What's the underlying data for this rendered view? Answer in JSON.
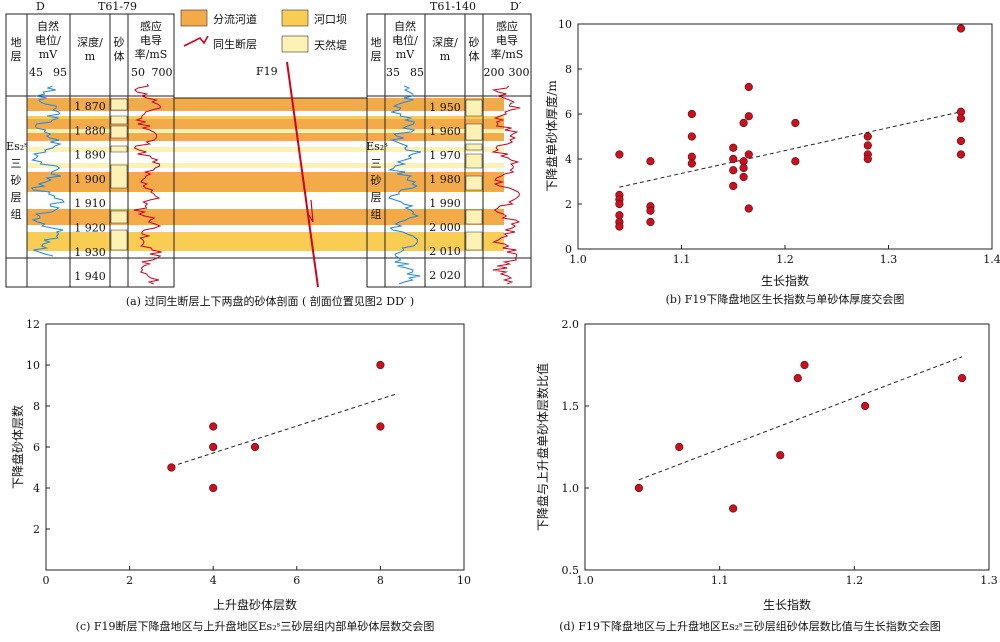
{
  "panel_a": {
    "left_well": {
      "label": "T61-79",
      "point": "D"
    },
    "right_well": {
      "label": "T61-140",
      "point": "D′"
    },
    "columns": {
      "strata": "地层",
      "sp": "自然电位/mV",
      "depth": "深度/m",
      "sand": "砂体",
      "cond": "感应电导率/mS"
    },
    "left_sp_scale": [
      "45",
      "95"
    ],
    "left_cond_scale": [
      "50",
      "700"
    ],
    "right_sp_scale": [
      "35",
      "85"
    ],
    "right_cond_scale": [
      "200",
      "300"
    ],
    "left_depths": [
      "1 870",
      "1 880",
      "1 890",
      "1 900",
      "1 910",
      "1 920",
      "1 930",
      "1 940"
    ],
    "right_depths": [
      "1 950",
      "1 960",
      "1 970",
      "1 980",
      "1 990",
      "2 000",
      "2 010",
      "2 020"
    ],
    "formation": "Es₂ˢ三砂层组",
    "fault_label": "F19",
    "legend": [
      {
        "label": "分流河道",
        "color": "#f3ab4a"
      },
      {
        "label": "同生断层",
        "color": "#d0021b"
      },
      {
        "label": "河口坝",
        "color": "#f9cc54"
      },
      {
        "label": "天然堤",
        "color": "#fdf1b3"
      }
    ],
    "caption": "(a) 过同生断层上下两盘的砂体剖面 ( 剖面位置见图2 DD′ )"
  },
  "chart_data": [
    {
      "type": "scatter",
      "panel": "b",
      "xlabel": "生长指数",
      "ylabel": "下降盘单砂体厚度/m",
      "xlim": [
        1.0,
        1.4
      ],
      "ylim": [
        0,
        10
      ],
      "xticks": [
        "1.0",
        "1.1",
        "1.2",
        "1.3",
        "1.4"
      ],
      "yticks": [
        "0",
        "2",
        "4",
        "6",
        "8",
        "10"
      ],
      "trendline": [
        [
          1.04,
          2.75
        ],
        [
          1.37,
          6.1
        ]
      ],
      "points": [
        [
          1.04,
          4.2
        ],
        [
          1.04,
          2.4
        ],
        [
          1.04,
          2.2
        ],
        [
          1.04,
          2.0
        ],
        [
          1.04,
          1.5
        ],
        [
          1.04,
          1.2
        ],
        [
          1.04,
          1.0
        ],
        [
          1.07,
          3.9
        ],
        [
          1.07,
          1.9
        ],
        [
          1.07,
          1.7
        ],
        [
          1.07,
          1.2
        ],
        [
          1.11,
          6.0
        ],
        [
          1.11,
          5.0
        ],
        [
          1.11,
          4.1
        ],
        [
          1.11,
          3.8
        ],
        [
          1.15,
          4.5
        ],
        [
          1.15,
          4.0
        ],
        [
          1.15,
          3.5
        ],
        [
          1.15,
          2.8
        ],
        [
          1.16,
          5.6
        ],
        [
          1.16,
          3.9
        ],
        [
          1.16,
          3.6
        ],
        [
          1.16,
          3.2
        ],
        [
          1.165,
          7.2
        ],
        [
          1.165,
          5.9
        ],
        [
          1.165,
          4.2
        ],
        [
          1.165,
          1.8
        ],
        [
          1.21,
          5.6
        ],
        [
          1.21,
          3.9
        ],
        [
          1.28,
          5.0
        ],
        [
          1.28,
          4.6
        ],
        [
          1.28,
          4.2
        ],
        [
          1.28,
          4.0
        ],
        [
          1.37,
          9.8
        ],
        [
          1.37,
          6.1
        ],
        [
          1.37,
          5.8
        ],
        [
          1.37,
          4.8
        ],
        [
          1.37,
          4.2
        ]
      ],
      "caption": "(b) F19下降盘地区生长指数与单砂体厚度交会图"
    },
    {
      "type": "scatter",
      "panel": "c",
      "xlabel": "上升盘砂体层数",
      "ylabel": "下降盘砂体层数",
      "xlim": [
        0,
        10
      ],
      "ylim": [
        0,
        12
      ],
      "xticks": [
        "0",
        "2",
        "4",
        "6",
        "8",
        "10"
      ],
      "yticks": [
        "2",
        "4",
        "6",
        "8",
        "10",
        "12"
      ],
      "trendline": [
        [
          3.0,
          5.05
        ],
        [
          8.4,
          8.6
        ]
      ],
      "points": [
        [
          3,
          5
        ],
        [
          4,
          7
        ],
        [
          4,
          6
        ],
        [
          4,
          4
        ],
        [
          5,
          6
        ],
        [
          8,
          10
        ],
        [
          8,
          7
        ]
      ],
      "caption": "(c) F19断层下降盘地区与上升盘地区Es₂ˢ三砂层组内部单砂体层数交会图"
    },
    {
      "type": "scatter",
      "panel": "d",
      "xlabel": "生长指数",
      "ylabel": "下降盘与上升盘单砂体层数比值",
      "xlim": [
        1.0,
        1.3
      ],
      "ylim": [
        0.5,
        2.0
      ],
      "xticks": [
        "1.0",
        "1.1",
        "1.2",
        "1.3"
      ],
      "yticks": [
        "0.5",
        "1.0",
        "1.5",
        "2.0"
      ],
      "trendline": [
        [
          1.04,
          1.05
        ],
        [
          1.28,
          1.8
        ]
      ],
      "points": [
        [
          1.04,
          1.0
        ],
        [
          1.07,
          1.25
        ],
        [
          1.11,
          0.875
        ],
        [
          1.145,
          1.2
        ],
        [
          1.158,
          1.67
        ],
        [
          1.163,
          1.75
        ],
        [
          1.208,
          1.5
        ],
        [
          1.28,
          1.67
        ]
      ],
      "caption": "(d) F19下降盘地区与上升盘地区Es₂ˢ三砂层组砂体层数比值与生长指数交会图"
    }
  ]
}
